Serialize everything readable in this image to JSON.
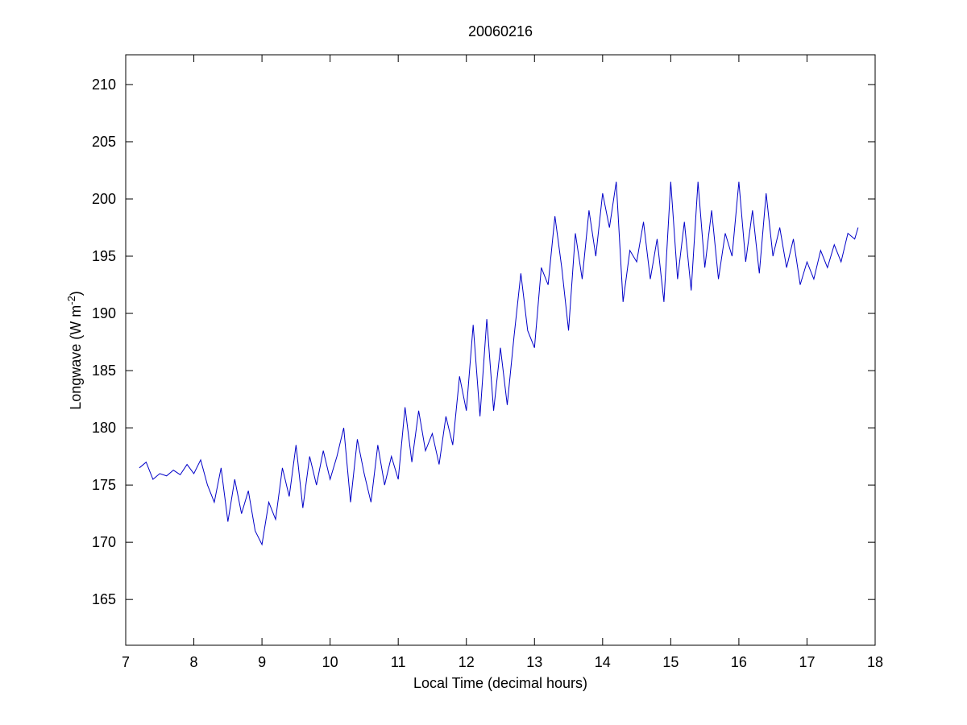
{
  "chart_data": {
    "type": "line",
    "title": "20060216",
    "x_label": "Local Time (decimal hours)",
    "y_label": {
      "text": "Longwave (W m",
      "sup": "-2",
      "end": ")"
    },
    "xlim": [
      7,
      18
    ],
    "ylim": [
      161,
      212.6
    ],
    "xticks": [
      7,
      8,
      9,
      10,
      11,
      12,
      13,
      14,
      15,
      16,
      17,
      18
    ],
    "yticks": [
      165,
      170,
      175,
      180,
      185,
      190,
      195,
      200,
      205,
      210
    ],
    "grid": false,
    "x": [
      7.2,
      7.3,
      7.4,
      7.5,
      7.6,
      7.7,
      7.8,
      7.9,
      8.0,
      8.1,
      8.2,
      8.3,
      8.4,
      8.5,
      8.6,
      8.7,
      8.8,
      8.9,
      9.0,
      9.1,
      9.2,
      9.3,
      9.4,
      9.5,
      9.6,
      9.7,
      9.8,
      9.9,
      10.0,
      10.1,
      10.2,
      10.3,
      10.4,
      10.5,
      10.6,
      10.7,
      10.8,
      10.9,
      11.0,
      11.1,
      11.2,
      11.3,
      11.4,
      11.5,
      11.6,
      11.7,
      11.8,
      11.9,
      12.0,
      12.1,
      12.2,
      12.3,
      12.4,
      12.5,
      12.6,
      12.7,
      12.8,
      12.9,
      13.0,
      13.1,
      13.2,
      13.3,
      13.4,
      13.5,
      13.6,
      13.7,
      13.8,
      13.9,
      14.0,
      14.1,
      14.2,
      14.3,
      14.4,
      14.5,
      14.6,
      14.7,
      14.8,
      14.9,
      15.0,
      15.1,
      15.2,
      15.3,
      15.4,
      15.5,
      15.6,
      15.7,
      15.8,
      15.9,
      16.0,
      16.1,
      16.2,
      16.3,
      16.4,
      16.5,
      16.6,
      16.7,
      16.8,
      16.9,
      17.0,
      17.1,
      17.2,
      17.3,
      17.4,
      17.5,
      17.6,
      17.7,
      17.75
    ],
    "series": [
      {
        "color": "#0000c8",
        "values": [
          176.5,
          177.0,
          175.5,
          176.0,
          175.8,
          176.3,
          175.9,
          176.8,
          176.0,
          177.2,
          175.0,
          173.5,
          176.5,
          171.8,
          175.5,
          172.5,
          174.5,
          171.0,
          169.8,
          173.5,
          172.0,
          176.5,
          174.0,
          178.5,
          173.0,
          177.5,
          175.0,
          178.0,
          175.5,
          177.5,
          180.0,
          173.5,
          179.0,
          176.0,
          173.5,
          178.5,
          175.0,
          177.5,
          175.5,
          181.8,
          177.0,
          181.5,
          178.0,
          179.5,
          176.8,
          181.0,
          178.5,
          184.5,
          181.5,
          189.0,
          181.0,
          189.5,
          181.5,
          187.0,
          182.0,
          188.0,
          193.5,
          188.5,
          187.0,
          194.0,
          192.5,
          198.5,
          194.0,
          188.5,
          197.0,
          193.0,
          199.0,
          195.0,
          200.5,
          197.5,
          201.5,
          191.0,
          195.5,
          194.5,
          198.0,
          193.0,
          196.5,
          191.0,
          201.5,
          193.0,
          198.0,
          192.0,
          201.5,
          194.0,
          199.0,
          193.0,
          197.0,
          195.0,
          201.5,
          194.5,
          199.0,
          193.5,
          200.5,
          195.0,
          197.5,
          194.0,
          196.5,
          192.5,
          194.5,
          193.0,
          195.5,
          194.0,
          196.0,
          194.5,
          197.0,
          196.5,
          197.5
        ]
      }
    ]
  }
}
